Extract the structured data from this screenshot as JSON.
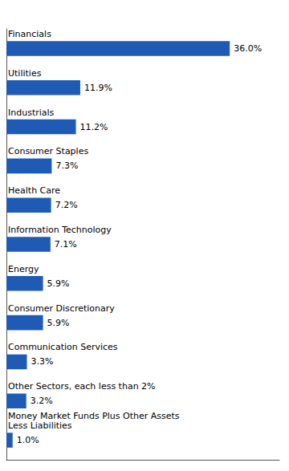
{
  "chart_data": {
    "type": "bar",
    "orientation": "horizontal",
    "categories": [
      "Financials",
      "Utilities",
      "Industrials",
      "Consumer Staples",
      "Health Care",
      "Information Technology",
      "Energy",
      "Consumer Discretionary",
      "Communication Services",
      "Other Sectors, each less than 2%",
      "Money Market Funds Plus Other Assets\nLess Liabilities"
    ],
    "values": [
      36.0,
      11.9,
      11.2,
      7.3,
      7.2,
      7.1,
      5.9,
      5.9,
      3.3,
      3.2,
      1.0
    ],
    "value_labels": [
      "36.0%",
      "11.9%",
      "11.2%",
      "7.3%",
      "7.2%",
      "7.1%",
      "5.9%",
      "5.9%",
      "3.3%",
      "3.2%",
      "1.0%"
    ],
    "color": "#1F5BB5",
    "xlim": [
      0,
      44
    ],
    "grid": false,
    "data_labels": true
  }
}
